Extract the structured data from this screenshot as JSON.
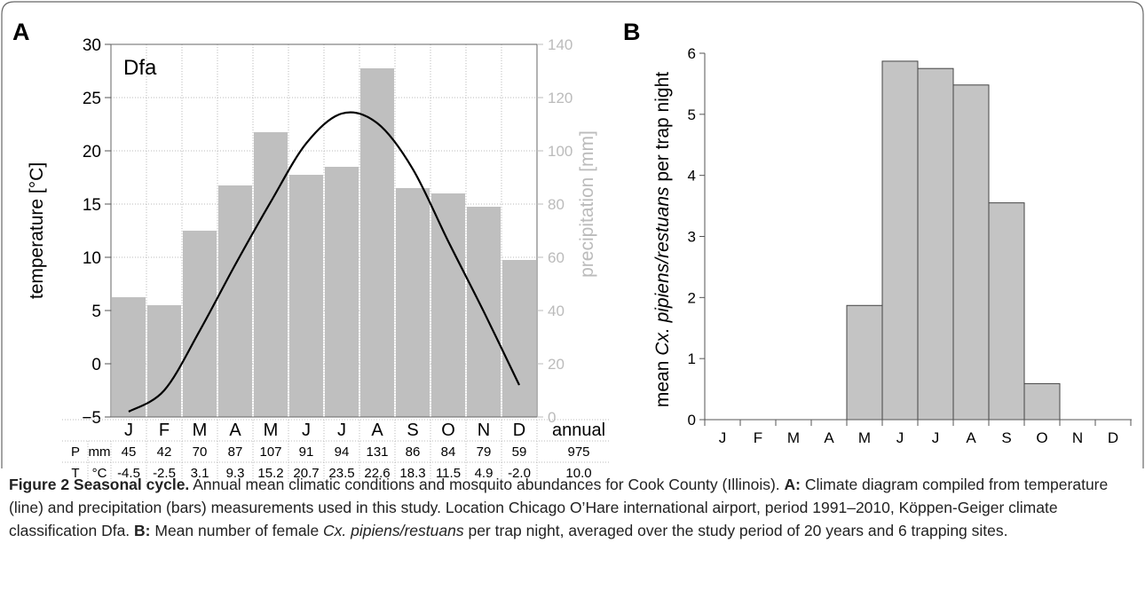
{
  "chart_data": [
    {
      "panel": "A",
      "type": "bar",
      "label_text": "Dfa",
      "categories": [
        "J",
        "F",
        "M",
        "A",
        "M",
        "J",
        "J",
        "A",
        "S",
        "O",
        "N",
        "D"
      ],
      "annual_label": "annual",
      "ylabel": "temperature [°C]",
      "y2label": "precipitation [mm]",
      "ylim": [
        -5,
        30
      ],
      "y2lim": [
        0,
        140
      ],
      "yticks": [
        -5,
        0,
        5,
        10,
        15,
        20,
        25,
        30
      ],
      "y2ticks": [
        0,
        20,
        40,
        60,
        80,
        100,
        120,
        140
      ],
      "series": [
        {
          "axis": "right",
          "kind": "bar",
          "values": [
            45,
            42,
            70,
            87,
            107,
            91,
            94,
            131,
            86,
            84,
            79,
            59
          ]
        },
        {
          "axis": "left",
          "kind": "line",
          "values": [
            -4.5,
            -2.5,
            3.1,
            9.3,
            15.2,
            20.7,
            23.5,
            22.6,
            18.3,
            11.5,
            4.9,
            -2.0
          ]
        }
      ],
      "table": {
        "rows": [
          {
            "label": "P",
            "unit": "mm",
            "values": [
              "45",
              "42",
              "70",
              "87",
              "107",
              "91",
              "94",
              "131",
              "86",
              "84",
              "79",
              "59"
            ],
            "annual": "975"
          },
          {
            "label": "T",
            "unit": "°C",
            "values": [
              "-4.5",
              "-2.5",
              "3.1",
              "9.3",
              "15.2",
              "20.7",
              "23.5",
              "22.6",
              "18.3",
              "11.5",
              "4.9",
              "-2.0"
            ],
            "annual": "10.0"
          }
        ]
      },
      "colors": {
        "bars": "#bfbfbf",
        "line": "#000000",
        "right_axis": "#bbbbbb"
      }
    },
    {
      "panel": "B",
      "type": "bar",
      "categories": [
        "J",
        "F",
        "M",
        "A",
        "M",
        "J",
        "J",
        "A",
        "S",
        "O",
        "N",
        "D"
      ],
      "ylabel_pre": "mean ",
      "ylabel_italic": "Cx. pipiens/restuans",
      "ylabel_post": " per trap night",
      "ylim": [
        0,
        6
      ],
      "yticks": [
        0,
        1,
        2,
        3,
        4,
        5,
        6
      ],
      "values": [
        0,
        0,
        0,
        0,
        1.87,
        5.87,
        5.75,
        5.48,
        3.55,
        0.59,
        0,
        0
      ],
      "colors": {
        "bars": "#c4c4c4",
        "edge": "#444444"
      }
    }
  ],
  "caption": {
    "fig_label": "Figure 2 Seasonal cycle.",
    "intro": " Annual mean climatic conditions and mosquito abundances for Cook County (Illinois). ",
    "a_label": "A:",
    "a_text": " Climate diagram compiled from temperature (line) and precipitation (bars) measurements used in this study. Location Chicago O’Hare international airport, period 1991–2010, Köppen-Geiger climate classification Dfa. ",
    "b_label": "B:",
    "b_text_pre": " Mean number of female ",
    "b_species": "Cx. pipiens/restuans",
    "b_text_post": " per trap night, averaged over the study period of 20 years and 6 trapping sites."
  }
}
